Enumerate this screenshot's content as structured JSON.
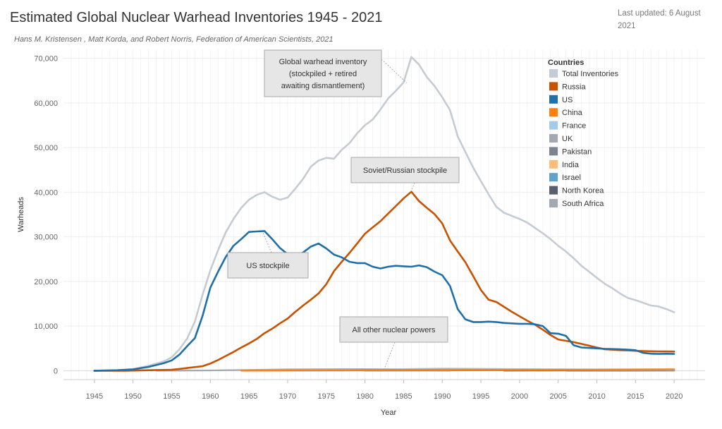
{
  "header": {
    "title": "Estimated Global Nuclear Warhead Inventories 1945 - 2021",
    "subtitle": "Hans M. Kristensen , Matt Korda, and Robert Norris, Federation of American Scientists, 2021",
    "last_updated": "Last updated: 6 August 2021"
  },
  "chart_data": {
    "type": "line",
    "xlabel": "Year",
    "ylabel": "Warheads",
    "xlim": [
      1941,
      2024
    ],
    "ylim": [
      -2000,
      72000
    ],
    "x_ticks": [
      1945,
      1950,
      1955,
      1960,
      1965,
      1970,
      1975,
      1980,
      1985,
      1990,
      1995,
      2000,
      2005,
      2010,
      2015,
      2020
    ],
    "y_ticks": [
      0,
      10000,
      20000,
      30000,
      40000,
      50000,
      60000,
      70000
    ],
    "y_tick_labels": [
      "0",
      "10,000",
      "20,000",
      "30,000",
      "40,000",
      "50,000",
      "60,000",
      "70,000"
    ],
    "grid": true,
    "legend": {
      "title": "Countries",
      "position": "right",
      "entries": [
        {
          "name": "Total  Inventories",
          "color": "#c5cbd3"
        },
        {
          "name": "Russia",
          "color": "#c85200"
        },
        {
          "name": "US",
          "color": "#1f6fa8"
        },
        {
          "name": "China",
          "color": "#ff800e"
        },
        {
          "name": "France",
          "color": "#a3cce9"
        },
        {
          "name": "UK",
          "color": "#a2a9b1"
        },
        {
          "name": "Pakistan",
          "color": "#7b848f"
        },
        {
          "name": "India",
          "color": "#ffbc79"
        },
        {
          "name": "Israel",
          "color": "#5fa2ce"
        },
        {
          "name": "North Korea",
          "color": "#57606c"
        },
        {
          "name": "South Africa",
          "color": "#a2a9b1"
        }
      ]
    },
    "series": [
      {
        "name": "Total  Inventories",
        "color": "#c5cbd3",
        "points": [
          [
            1945,
            0
          ],
          [
            1948,
            100
          ],
          [
            1950,
            350
          ],
          [
            1952,
            1100
          ],
          [
            1954,
            2100
          ],
          [
            1955,
            3000
          ],
          [
            1956,
            4800
          ],
          [
            1957,
            7200
          ],
          [
            1958,
            11000
          ],
          [
            1959,
            17000
          ],
          [
            1960,
            22500
          ],
          [
            1961,
            27000
          ],
          [
            1962,
            31000
          ],
          [
            1963,
            34000
          ],
          [
            1964,
            36500
          ],
          [
            1965,
            38300
          ],
          [
            1966,
            39400
          ],
          [
            1967,
            40000
          ],
          [
            1968,
            39000
          ],
          [
            1969,
            38300
          ],
          [
            1970,
            38800
          ],
          [
            1971,
            40800
          ],
          [
            1972,
            43000
          ],
          [
            1973,
            45700
          ],
          [
            1974,
            47100
          ],
          [
            1975,
            47700
          ],
          [
            1976,
            47500
          ],
          [
            1977,
            49500
          ],
          [
            1978,
            51000
          ],
          [
            1979,
            53200
          ],
          [
            1980,
            55000
          ],
          [
            1981,
            56300
          ],
          [
            1982,
            58500
          ],
          [
            1983,
            61000
          ],
          [
            1984,
            62700
          ],
          [
            1985,
            64600
          ],
          [
            1986,
            70300
          ],
          [
            1987,
            68600
          ],
          [
            1988,
            65800
          ],
          [
            1989,
            63800
          ],
          [
            1990,
            61300
          ],
          [
            1991,
            58400
          ],
          [
            1992,
            52500
          ],
          [
            1993,
            49000
          ],
          [
            1994,
            45500
          ],
          [
            1995,
            42500
          ],
          [
            1996,
            39500
          ],
          [
            1997,
            36700
          ],
          [
            1998,
            35400
          ],
          [
            1999,
            34700
          ],
          [
            2000,
            34000
          ],
          [
            2001,
            33200
          ],
          [
            2002,
            32000
          ],
          [
            2003,
            30800
          ],
          [
            2004,
            29500
          ],
          [
            2005,
            28000
          ],
          [
            2006,
            26700
          ],
          [
            2007,
            25200
          ],
          [
            2008,
            23500
          ],
          [
            2009,
            22200
          ],
          [
            2010,
            20800
          ],
          [
            2011,
            19500
          ],
          [
            2012,
            18500
          ],
          [
            2013,
            17300
          ],
          [
            2014,
            16300
          ],
          [
            2015,
            15800
          ],
          [
            2016,
            15200
          ],
          [
            2017,
            14600
          ],
          [
            2018,
            14400
          ],
          [
            2019,
            13800
          ],
          [
            2020,
            13100
          ]
        ]
      },
      {
        "name": "US",
        "color": "#1f6fa8",
        "points": [
          [
            1945,
            0
          ],
          [
            1948,
            100
          ],
          [
            1950,
            300
          ],
          [
            1952,
            850
          ],
          [
            1954,
            1700
          ],
          [
            1955,
            2300
          ],
          [
            1956,
            3600
          ],
          [
            1957,
            5500
          ],
          [
            1958,
            7300
          ],
          [
            1959,
            12300
          ],
          [
            1960,
            18600
          ],
          [
            1961,
            22200
          ],
          [
            1962,
            25500
          ],
          [
            1963,
            28000
          ],
          [
            1964,
            29500
          ],
          [
            1965,
            31100
          ],
          [
            1966,
            31200
          ],
          [
            1967,
            31300
          ],
          [
            1968,
            29500
          ],
          [
            1969,
            27500
          ],
          [
            1970,
            26100
          ],
          [
            1971,
            25800
          ],
          [
            1972,
            26500
          ],
          [
            1973,
            27800
          ],
          [
            1974,
            28500
          ],
          [
            1975,
            27400
          ],
          [
            1976,
            26000
          ],
          [
            1977,
            25400
          ],
          [
            1978,
            24400
          ],
          [
            1979,
            24100
          ],
          [
            1980,
            24100
          ],
          [
            1981,
            23300
          ],
          [
            1982,
            22900
          ],
          [
            1983,
            23300
          ],
          [
            1984,
            23500
          ],
          [
            1985,
            23400
          ],
          [
            1986,
            23300
          ],
          [
            1987,
            23600
          ],
          [
            1988,
            23200
          ],
          [
            1989,
            22200
          ],
          [
            1990,
            21400
          ],
          [
            1991,
            19000
          ],
          [
            1992,
            13800
          ],
          [
            1993,
            11500
          ],
          [
            1994,
            10900
          ],
          [
            1995,
            10900
          ],
          [
            1996,
            11000
          ],
          [
            1997,
            10900
          ],
          [
            1998,
            10700
          ],
          [
            1999,
            10600
          ],
          [
            2000,
            10500
          ],
          [
            2001,
            10500
          ],
          [
            2002,
            10400
          ],
          [
            2003,
            10000
          ],
          [
            2004,
            8400
          ],
          [
            2005,
            8300
          ],
          [
            2006,
            7800
          ],
          [
            2007,
            5700
          ],
          [
            2008,
            5200
          ],
          [
            2009,
            5100
          ],
          [
            2010,
            5000
          ],
          [
            2011,
            4900
          ],
          [
            2012,
            4850
          ],
          [
            2013,
            4800
          ],
          [
            2014,
            4700
          ],
          [
            2015,
            4600
          ],
          [
            2016,
            4000
          ],
          [
            2017,
            3800
          ],
          [
            2018,
            3750
          ],
          [
            2019,
            3800
          ],
          [
            2020,
            3750
          ]
        ]
      },
      {
        "name": "Russia",
        "color": "#c85200",
        "points": [
          [
            1945,
            0
          ],
          [
            1949,
            0
          ],
          [
            1952,
            100
          ],
          [
            1955,
            200
          ],
          [
            1957,
            600
          ],
          [
            1959,
            1000
          ],
          [
            1960,
            1600
          ],
          [
            1961,
            2400
          ],
          [
            1962,
            3300
          ],
          [
            1963,
            4200
          ],
          [
            1964,
            5200
          ],
          [
            1965,
            6100
          ],
          [
            1966,
            7100
          ],
          [
            1967,
            8400
          ],
          [
            1968,
            9400
          ],
          [
            1969,
            10600
          ],
          [
            1970,
            11700
          ],
          [
            1971,
            13200
          ],
          [
            1972,
            14600
          ],
          [
            1973,
            15900
          ],
          [
            1974,
            17300
          ],
          [
            1975,
            19400
          ],
          [
            1976,
            22300
          ],
          [
            1977,
            24400
          ],
          [
            1978,
            26400
          ],
          [
            1979,
            28500
          ],
          [
            1980,
            30700
          ],
          [
            1981,
            32100
          ],
          [
            1982,
            33500
          ],
          [
            1983,
            35200
          ],
          [
            1984,
            36900
          ],
          [
            1985,
            38600
          ],
          [
            1986,
            40100
          ],
          [
            1987,
            38000
          ],
          [
            1988,
            36500
          ],
          [
            1989,
            35100
          ],
          [
            1990,
            33000
          ],
          [
            1991,
            29200
          ],
          [
            1992,
            26700
          ],
          [
            1993,
            24300
          ],
          [
            1994,
            21200
          ],
          [
            1995,
            18100
          ],
          [
            1996,
            15900
          ],
          [
            1997,
            15400
          ],
          [
            1998,
            14300
          ],
          [
            1999,
            13200
          ],
          [
            2000,
            12200
          ],
          [
            2001,
            11200
          ],
          [
            2002,
            10300
          ],
          [
            2003,
            9200
          ],
          [
            2004,
            8000
          ],
          [
            2005,
            7000
          ],
          [
            2006,
            6700
          ],
          [
            2007,
            6400
          ],
          [
            2008,
            6000
          ],
          [
            2009,
            5600
          ],
          [
            2010,
            5200
          ],
          [
            2011,
            4800
          ],
          [
            2012,
            4700
          ],
          [
            2013,
            4600
          ],
          [
            2014,
            4550
          ],
          [
            2015,
            4450
          ],
          [
            2016,
            4400
          ],
          [
            2017,
            4350
          ],
          [
            2018,
            4330
          ],
          [
            2019,
            4310
          ],
          [
            2020,
            4300
          ]
        ]
      },
      {
        "name": "China",
        "color": "#ff800e",
        "points": [
          [
            1964,
            0
          ],
          [
            1970,
            40
          ],
          [
            1980,
            200
          ],
          [
            1990,
            230
          ],
          [
            2000,
            230
          ],
          [
            2010,
            250
          ],
          [
            2020,
            320
          ]
        ]
      },
      {
        "name": "France",
        "color": "#a3cce9",
        "points": [
          [
            1964,
            0
          ],
          [
            1970,
            40
          ],
          [
            1980,
            250
          ],
          [
            1990,
            500
          ],
          [
            2000,
            360
          ],
          [
            2010,
            300
          ],
          [
            2020,
            290
          ]
        ]
      },
      {
        "name": "UK",
        "color": "#a2a9b1",
        "points": [
          [
            1953,
            0
          ],
          [
            1960,
            50
          ],
          [
            1970,
            300
          ],
          [
            1980,
            350
          ],
          [
            1990,
            300
          ],
          [
            2000,
            230
          ],
          [
            2010,
            225
          ],
          [
            2020,
            225
          ]
        ]
      },
      {
        "name": "Pakistan",
        "color": "#7b848f",
        "points": [
          [
            1998,
            0
          ],
          [
            2005,
            40
          ],
          [
            2010,
            80
          ],
          [
            2020,
            165
          ]
        ]
      },
      {
        "name": "India",
        "color": "#ffbc79",
        "points": [
          [
            1998,
            0
          ],
          [
            2005,
            30
          ],
          [
            2010,
            70
          ],
          [
            2020,
            155
          ]
        ]
      },
      {
        "name": "Israel",
        "color": "#5fa2ce",
        "points": [
          [
            1967,
            0
          ],
          [
            1980,
            40
          ],
          [
            1990,
            60
          ],
          [
            2000,
            80
          ],
          [
            2020,
            90
          ]
        ]
      },
      {
        "name": "North Korea",
        "color": "#57606c",
        "points": [
          [
            2006,
            0
          ],
          [
            2010,
            10
          ],
          [
            2020,
            40
          ]
        ]
      },
      {
        "name": "South Africa",
        "color": "#a2a9b1",
        "points": [
          [
            1980,
            0
          ],
          [
            1985,
            4
          ],
          [
            1989,
            6
          ],
          [
            1991,
            0
          ]
        ]
      }
    ],
    "annotations": [
      {
        "lines": [
          "Global warhead inventory",
          "(stockpiled + retired",
          "awaiting dismantlement)"
        ],
        "target": [
          1985.4,
          64500
        ]
      },
      {
        "lines": [
          "Soviet/Russian stockpile"
        ],
        "target": [
          1985.9,
          40000
        ]
      },
      {
        "lines": [
          "US stockpile"
        ],
        "target": [
          1966.8,
          31000
        ]
      },
      {
        "lines": [
          "All other nuclear powers"
        ],
        "target": [
          1982.5,
          400
        ]
      }
    ]
  }
}
